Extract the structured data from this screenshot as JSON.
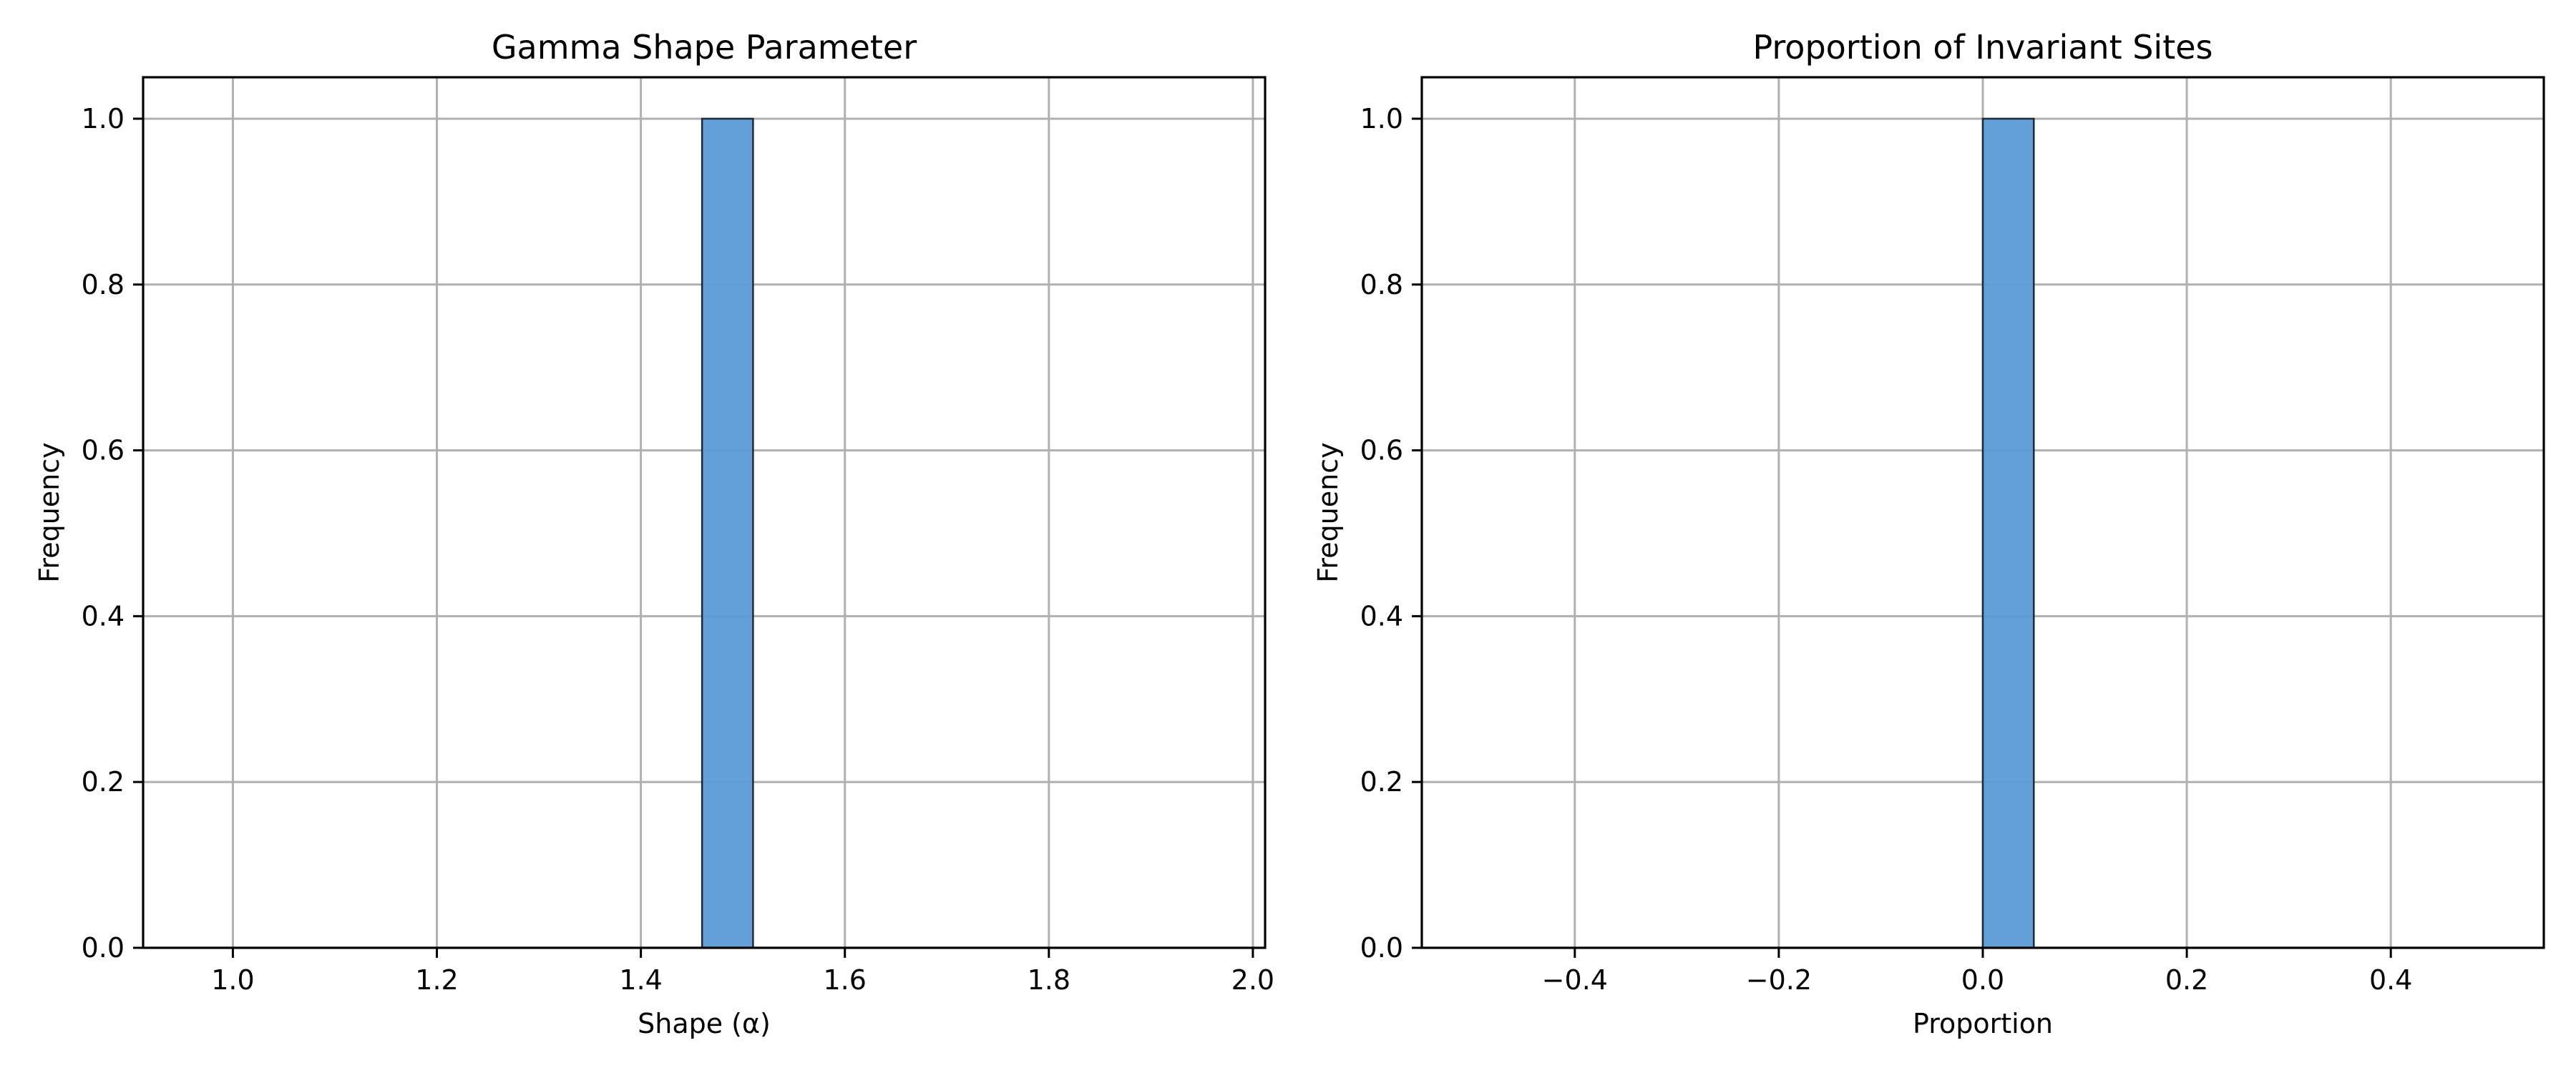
{
  "colors": {
    "bar_fill": "#5b9bd5",
    "bar_edge": "#1f2a36",
    "grid": "#b0b0b0",
    "axis": "#000000",
    "background": "#ffffff"
  },
  "chart_data": [
    {
      "type": "bar",
      "title": "Gamma Shape Parameter",
      "xlabel": "Shape (α)",
      "ylabel": "Frequency",
      "xlim": [
        0.912,
        2.012
      ],
      "ylim": [
        0,
        1.05
      ],
      "x_ticks": [
        1.0,
        1.2,
        1.4,
        1.6,
        1.8,
        2.0
      ],
      "x_tick_labels": [
        "1.0",
        "1.2",
        "1.4",
        "1.6",
        "1.8",
        "2.0"
      ],
      "y_ticks": [
        0.0,
        0.2,
        0.4,
        0.6,
        0.8,
        1.0
      ],
      "y_tick_labels": [
        "0.0",
        "0.2",
        "0.4",
        "0.6",
        "0.8",
        "1.0"
      ],
      "grid": true,
      "bins": [
        {
          "x0": 0.96,
          "x1": 1.01,
          "count": 0
        },
        {
          "x0": 1.01,
          "x1": 1.06,
          "count": 0
        },
        {
          "x0": 1.06,
          "x1": 1.11,
          "count": 0
        },
        {
          "x0": 1.11,
          "x1": 1.16,
          "count": 0
        },
        {
          "x0": 1.16,
          "x1": 1.21,
          "count": 0
        },
        {
          "x0": 1.21,
          "x1": 1.26,
          "count": 0
        },
        {
          "x0": 1.26,
          "x1": 1.31,
          "count": 0
        },
        {
          "x0": 1.31,
          "x1": 1.36,
          "count": 0
        },
        {
          "x0": 1.36,
          "x1": 1.41,
          "count": 0
        },
        {
          "x0": 1.41,
          "x1": 1.46,
          "count": 0
        },
        {
          "x0": 1.46,
          "x1": 1.51,
          "count": 1
        },
        {
          "x0": 1.51,
          "x1": 1.56,
          "count": 0
        },
        {
          "x0": 1.56,
          "x1": 1.61,
          "count": 0
        },
        {
          "x0": 1.61,
          "x1": 1.66,
          "count": 0
        },
        {
          "x0": 1.66,
          "x1": 1.71,
          "count": 0
        },
        {
          "x0": 1.71,
          "x1": 1.76,
          "count": 0
        },
        {
          "x0": 1.76,
          "x1": 1.81,
          "count": 0
        },
        {
          "x0": 1.81,
          "x1": 1.86,
          "count": 0
        },
        {
          "x0": 1.86,
          "x1": 1.91,
          "count": 0
        },
        {
          "x0": 1.91,
          "x1": 1.96,
          "count": 0
        }
      ]
    },
    {
      "type": "bar",
      "title": "Proportion of Invariant Sites",
      "xlabel": "Proportion",
      "ylabel": "Frequency",
      "xlim": [
        -0.55,
        0.55
      ],
      "ylim": [
        0,
        1.05
      ],
      "x_ticks": [
        -0.4,
        -0.2,
        0.0,
        0.2,
        0.4
      ],
      "x_tick_labels": [
        "−0.4",
        "−0.2",
        "0.0",
        "0.2",
        "0.4"
      ],
      "y_ticks": [
        0.0,
        0.2,
        0.4,
        0.6,
        0.8,
        1.0
      ],
      "y_tick_labels": [
        "0.0",
        "0.2",
        "0.4",
        "0.6",
        "0.8",
        "1.0"
      ],
      "grid": true,
      "bins": [
        {
          "x0": -0.5,
          "x1": -0.45,
          "count": 0
        },
        {
          "x0": -0.45,
          "x1": -0.4,
          "count": 0
        },
        {
          "x0": -0.4,
          "x1": -0.35,
          "count": 0
        },
        {
          "x0": -0.35,
          "x1": -0.3,
          "count": 0
        },
        {
          "x0": -0.3,
          "x1": -0.25,
          "count": 0
        },
        {
          "x0": -0.25,
          "x1": -0.2,
          "count": 0
        },
        {
          "x0": -0.2,
          "x1": -0.15,
          "count": 0
        },
        {
          "x0": -0.15,
          "x1": -0.1,
          "count": 0
        },
        {
          "x0": -0.1,
          "x1": -0.05,
          "count": 0
        },
        {
          "x0": -0.05,
          "x1": 0.0,
          "count": 0
        },
        {
          "x0": 0.0,
          "x1": 0.05,
          "count": 1
        },
        {
          "x0": 0.05,
          "x1": 0.1,
          "count": 0
        },
        {
          "x0": 0.1,
          "x1": 0.15,
          "count": 0
        },
        {
          "x0": 0.15,
          "x1": 0.2,
          "count": 0
        },
        {
          "x0": 0.2,
          "x1": 0.25,
          "count": 0
        },
        {
          "x0": 0.25,
          "x1": 0.3,
          "count": 0
        },
        {
          "x0": 0.3,
          "x1": 0.35,
          "count": 0
        },
        {
          "x0": 0.35,
          "x1": 0.4,
          "count": 0
        },
        {
          "x0": 0.4,
          "x1": 0.45,
          "count": 0
        },
        {
          "x0": 0.45,
          "x1": 0.5,
          "count": 0
        }
      ]
    }
  ]
}
